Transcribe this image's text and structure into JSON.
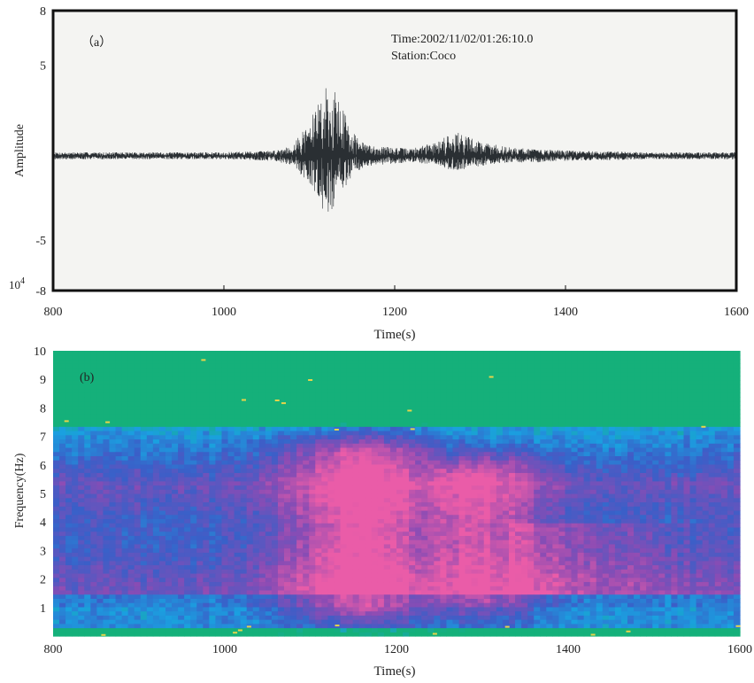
{
  "chart_data": [
    {
      "type": "line",
      "panel_label": "（a）",
      "annotations": [
        "Time:2002/11/02/01:26:10.0",
        "Station:Coco"
      ],
      "xlabel": "Time(s)",
      "ylabel": "Amplitude",
      "xlim": [
        800,
        1600
      ],
      "ylim": [
        -8,
        8
      ],
      "y_scale_label": "10",
      "y_scale_exponent": "4",
      "x_ticks": [
        "800",
        "1000",
        "1200",
        "1400",
        "1600"
      ],
      "y_ticks": [
        "8",
        "5",
        "-5",
        "-8"
      ],
      "series": [
        {
          "x": [
            800,
            900,
            1000,
            1060,
            1080,
            1100,
            1110,
            1120,
            1130,
            1140,
            1150,
            1160,
            1170,
            1190,
            1220,
            1250,
            1270,
            1280,
            1300,
            1330,
            1360,
            1400,
            1500,
            1600
          ],
          "envelope_upper": [
            0.2,
            0.2,
            0.2,
            0.3,
            0.6,
            1.8,
            3.0,
            3.8,
            3.6,
            2.6,
            1.4,
            0.8,
            0.6,
            0.5,
            0.4,
            0.8,
            1.4,
            1.2,
            0.8,
            0.5,
            0.4,
            0.3,
            0.2,
            0.2
          ],
          "envelope_lower": [
            -0.2,
            -0.2,
            -0.2,
            -0.3,
            -0.6,
            -1.6,
            -2.6,
            -3.6,
            -3.0,
            -2.0,
            -1.2,
            -0.8,
            -0.6,
            -0.5,
            -0.4,
            -0.6,
            -1.0,
            -0.8,
            -0.6,
            -0.4,
            -0.4,
            -0.3,
            -0.2,
            -0.2
          ]
        }
      ],
      "colors": {
        "trace": "#2a2f33",
        "frame": "#111111",
        "background": "#f4f4f2"
      }
    },
    {
      "type": "heatmap",
      "panel_label": "(b)",
      "xlabel": "Time(s)",
      "ylabel": "Frequency(Hz)",
      "xlim": [
        800,
        1600
      ],
      "ylim": [
        0,
        10
      ],
      "x_ticks": [
        "800",
        "1000",
        "1200",
        "1400",
        "1600"
      ],
      "y_ticks": [
        "1",
        "2",
        "3",
        "4",
        "5",
        "6",
        "7",
        "8",
        "9",
        "10"
      ],
      "events": [
        {
          "x_center": 1160,
          "x_width": 90,
          "y_low": 1,
          "y_high": 6.5
        },
        {
          "x_center": 1290,
          "x_width": 80,
          "y_low": 1.2,
          "y_high": 5.8
        }
      ],
      "colors": {
        "low": "#15b07a",
        "mid_low": "#1aa0e0",
        "mid": "#3a5fc8",
        "high": "#8a4cb4",
        "peak": "#ea5ca8",
        "speck": "#e6d44a"
      }
    }
  ]
}
